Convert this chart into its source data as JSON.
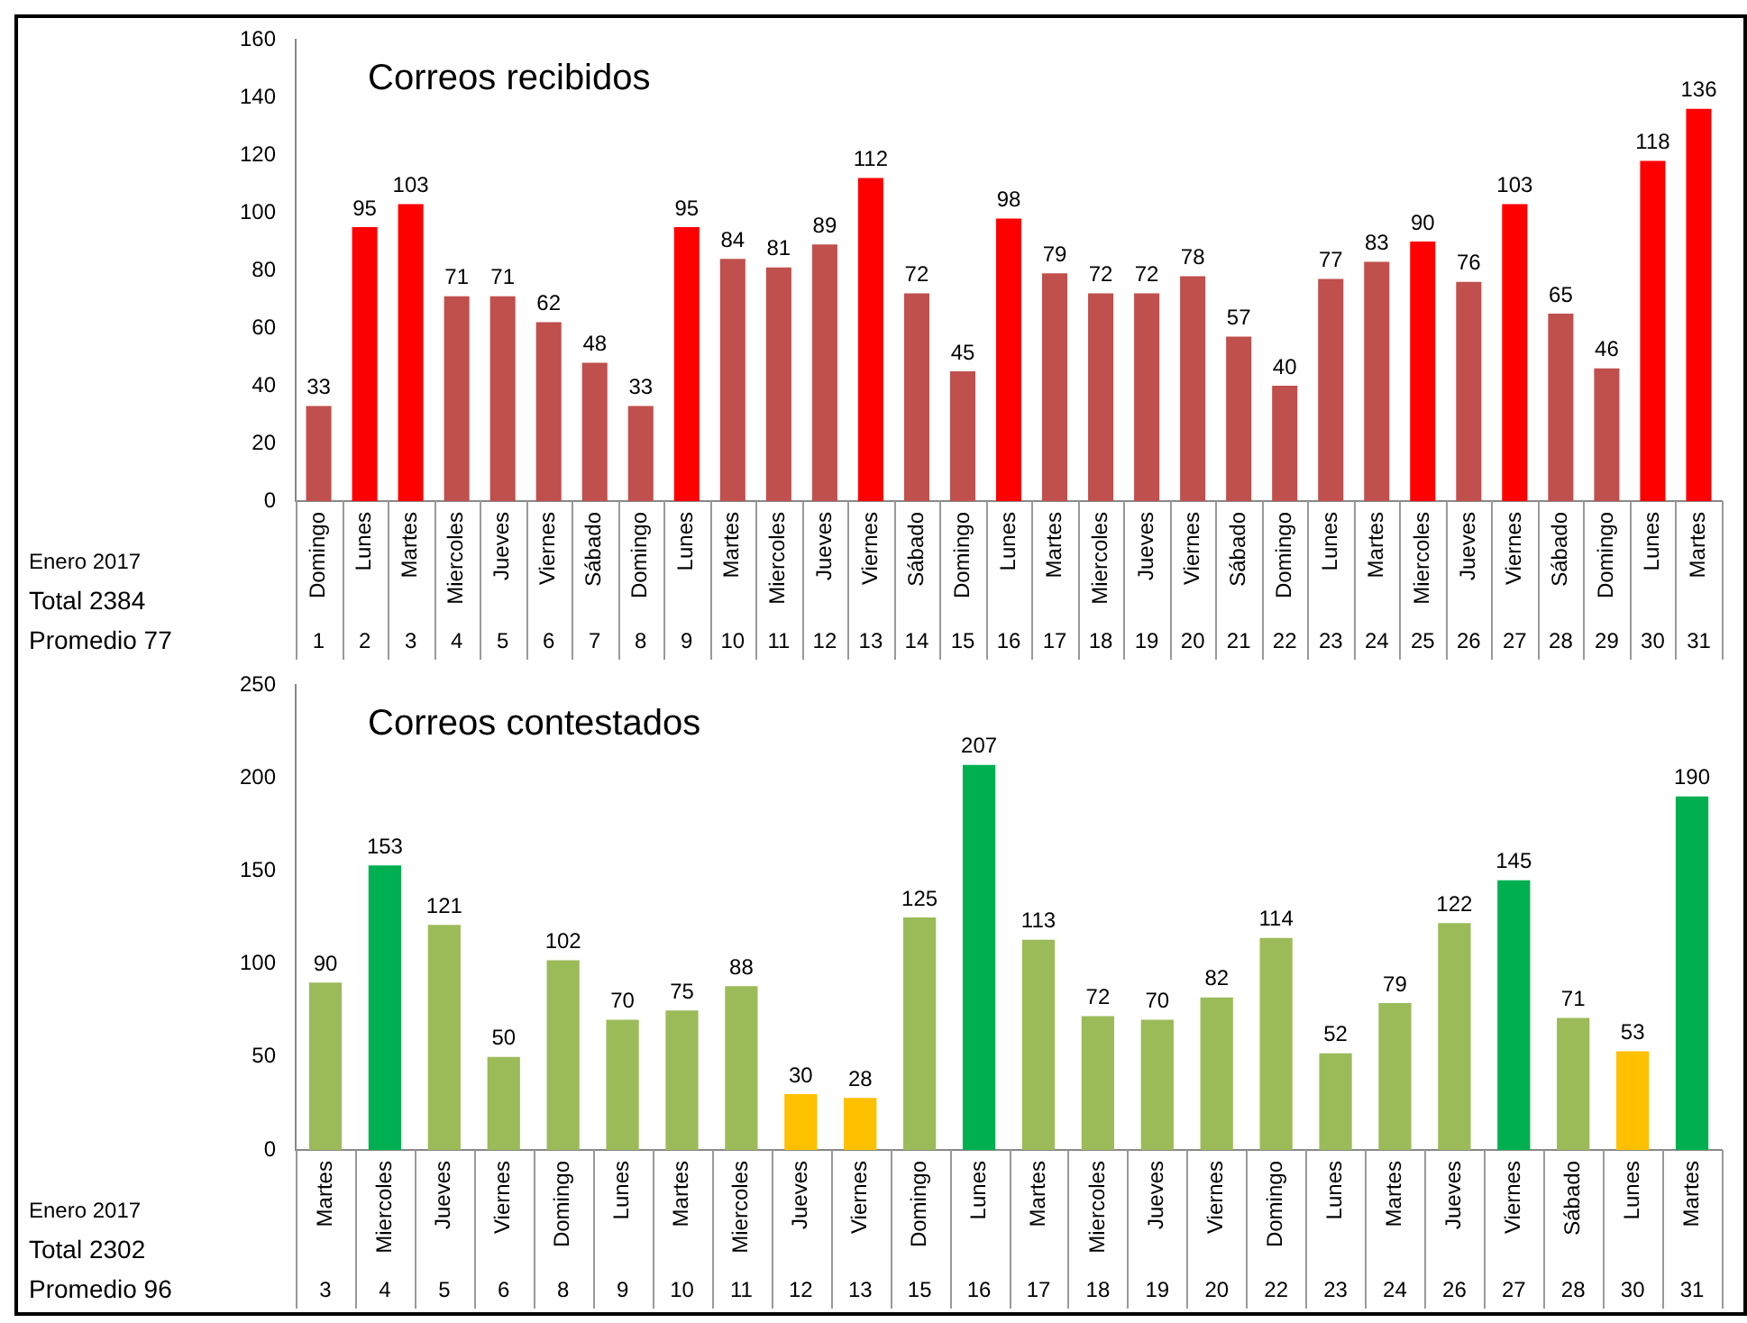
{
  "chart_data": [
    {
      "type": "bar",
      "title": "Correos recibidos",
      "categories": [
        "Domingo",
        "Lunes",
        "Martes",
        "Miercoles",
        "Jueves",
        "Viernes",
        "Sábado",
        "Domingo",
        "Lunes",
        "Martes",
        "Miercoles",
        "Jueves",
        "Viernes",
        "Sábado",
        "Domingo",
        "Lunes",
        "Martes",
        "Miercoles",
        "Jueves",
        "Viernes",
        "Sábado",
        "Domingo",
        "Lunes",
        "Martes",
        "Miercoles",
        "Jueves",
        "Viernes",
        "Sábado",
        "Domingo",
        "Lunes",
        "Martes"
      ],
      "values": [
        33,
        95,
        103,
        71,
        71,
        62,
        48,
        33,
        95,
        84,
        81,
        89,
        112,
        72,
        45,
        98,
        79,
        72,
        72,
        78,
        57,
        40,
        77,
        83,
        90,
        76,
        103,
        65,
        46,
        118,
        136
      ],
      "colors": [
        "#c0504d",
        "#ff0000",
        "#ff0000",
        "#c0504d",
        "#c0504d",
        "#c0504d",
        "#c0504d",
        "#c0504d",
        "#ff0000",
        "#c0504d",
        "#c0504d",
        "#c0504d",
        "#ff0000",
        "#c0504d",
        "#c0504d",
        "#ff0000",
        "#c0504d",
        "#c0504d",
        "#c0504d",
        "#c0504d",
        "#c0504d",
        "#c0504d",
        "#c0504d",
        "#c0504d",
        "#ff0000",
        "#c0504d",
        "#ff0000",
        "#c0504d",
        "#c0504d",
        "#ff0000",
        "#ff0000"
      ],
      "ylim": [
        0,
        160
      ],
      "yticks": [
        0,
        20,
        40,
        60,
        80,
        100,
        120,
        140,
        160
      ],
      "grid": false,
      "legend": false,
      "data_labels": true,
      "annotations": [
        "Enero 2017",
        "Total 2384",
        "Promedio 77",
        "1",
        "2",
        "3",
        "4",
        "5",
        "6",
        "7",
        "8",
        "9",
        "10",
        "11",
        "12",
        "13",
        "14",
        "15",
        "16",
        "17",
        "18",
        "19",
        "20",
        "21",
        "22",
        "23",
        "24",
        "25",
        "26",
        "27",
        "28",
        "29",
        "30",
        "31"
      ]
    },
    {
      "type": "bar",
      "title": "Correos contestados",
      "categories": [
        "Martes",
        "Miercoles",
        "Jueves",
        "Viernes",
        "Domingo",
        "Lunes",
        "Martes",
        "Miercoles",
        "Jueves",
        "Viernes",
        "Domingo",
        "Lunes",
        "Martes",
        "Miercoles",
        "Jueves",
        "Viernes",
        "Domingo",
        "Lunes",
        "Martes",
        "Jueves",
        "Viernes",
        "Sábado",
        "Lunes",
        "Martes"
      ],
      "values": [
        90,
        153,
        121,
        50,
        102,
        70,
        75,
        88,
        30,
        28,
        125,
        207,
        113,
        72,
        70,
        82,
        114,
        52,
        79,
        122,
        145,
        71,
        53,
        190
      ],
      "colors": [
        "#9bbb59",
        "#00b050",
        "#9bbb59",
        "#9bbb59",
        "#9bbb59",
        "#9bbb59",
        "#9bbb59",
        "#9bbb59",
        "#ffc000",
        "#ffc000",
        "#9bbb59",
        "#00b050",
        "#9bbb59",
        "#9bbb59",
        "#9bbb59",
        "#9bbb59",
        "#9bbb59",
        "#9bbb59",
        "#9bbb59",
        "#9bbb59",
        "#00b050",
        "#9bbb59",
        "#ffc000",
        "#00b050"
      ],
      "ylim": [
        0,
        250
      ],
      "yticks": [
        0,
        50,
        100,
        150,
        200,
        250
      ],
      "grid": false,
      "legend": false,
      "data_labels": true,
      "annotations": [
        "Enero 2017",
        "Total 2302",
        "Promedio 96",
        "3",
        "4",
        "5",
        "6",
        "8",
        "9",
        "10",
        "11",
        "12",
        "13",
        "15",
        "16",
        "17",
        "18",
        "19",
        "20",
        "22",
        "23",
        "24",
        "26",
        "27",
        "28",
        "30",
        "31"
      ]
    }
  ]
}
